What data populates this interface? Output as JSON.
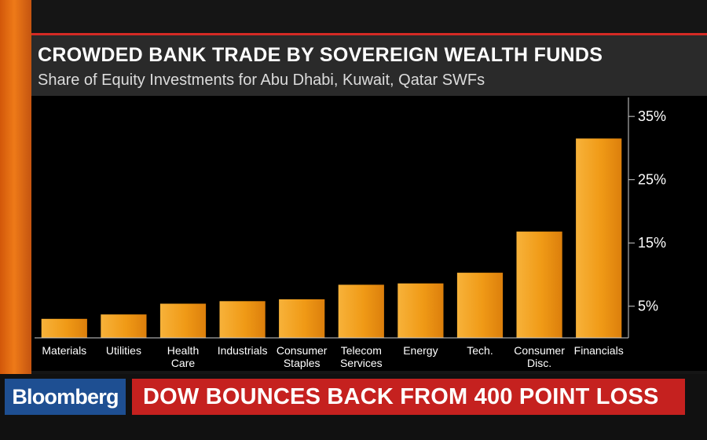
{
  "header": {
    "title": "CROWDED BANK TRADE BY SOVEREIGN WEALTH FUNDS",
    "subtitle": "Share of Equity Investments for Abu Dhabi, Kuwait, Qatar SWFs"
  },
  "chart_data": {
    "type": "bar",
    "title": "CROWDED BANK TRADE BY SOVEREIGN WEALTH FUNDS",
    "subtitle": "Share of Equity Investments for Abu Dhabi, Kuwait, Qatar SWFs",
    "categories": [
      [
        "Materials"
      ],
      [
        "Utilities"
      ],
      [
        "Health",
        "Care"
      ],
      [
        "Industrials"
      ],
      [
        "Consumer",
        "Staples"
      ],
      [
        "Telecom",
        "Services"
      ],
      [
        "Energy"
      ],
      [
        "Tech."
      ],
      [
        "Consumer",
        "Disc."
      ],
      [
        "Financials"
      ]
    ],
    "values": [
      3.0,
      3.7,
      5.4,
      5.8,
      6.1,
      8.4,
      8.6,
      10.3,
      16.8,
      31.5
    ],
    "ylim": [
      0,
      38
    ],
    "yticks": [
      5,
      15,
      25,
      35
    ],
    "ytick_labels": [
      "5%",
      "15%",
      "25%",
      "35%"
    ],
    "y_axis_position": "right",
    "grid": false,
    "legend": "none",
    "colors": {
      "bar": "#f09a16",
      "bar_light": "#f7b23a",
      "bar_dark": "#dc7f0c",
      "axis": "#cfcfcf",
      "text": "#ffffff"
    }
  },
  "lower_third": {
    "brand": "Bloomberg",
    "headline": "DOW BOUNCES BACK FROM 400 POINT LOSS"
  }
}
